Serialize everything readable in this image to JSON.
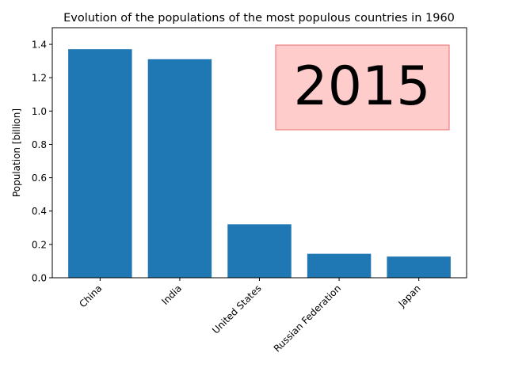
{
  "chart_data": {
    "type": "bar",
    "title": "Evolution of the populations of the most populous countries in 1960",
    "xlabel": "",
    "ylabel": "Population [billion]",
    "categories": [
      "China",
      "India",
      "United States",
      "Russian Federation",
      "Japan"
    ],
    "values": [
      1.371,
      1.311,
      0.321,
      0.144,
      0.127
    ],
    "ylim": [
      0,
      1.5
    ],
    "yticks": [
      "0.0",
      "0.2",
      "0.4",
      "0.6",
      "0.8",
      "1.0",
      "1.2",
      "1.4"
    ],
    "grid": false,
    "bar_color": "#1f77b4",
    "annotation": {
      "text": "2015",
      "position": "top-right",
      "box_color": "#ffcccc",
      "border_color": "#f08080"
    }
  }
}
